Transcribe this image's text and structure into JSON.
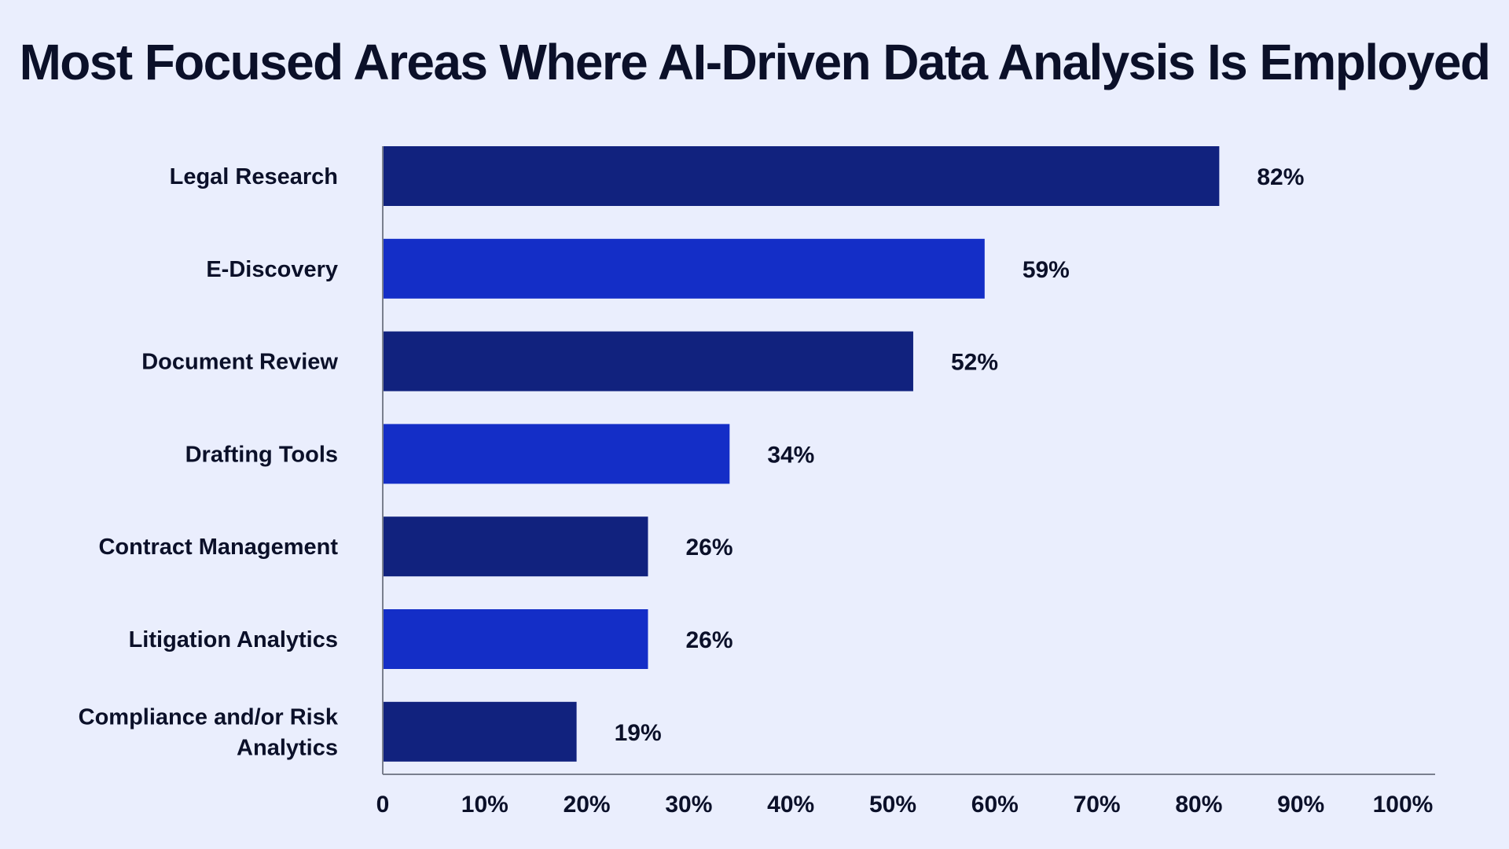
{
  "chart_data": {
    "type": "bar",
    "orientation": "horizontal",
    "title": "Most Focused Areas Where AI-Driven Data Analysis Is Employed",
    "categories": [
      "Legal Research",
      "E-Discovery",
      "Document Review",
      "Drafting Tools",
      "Contract Management",
      "Litigation Analytics",
      "Compliance and/or Risk Analytics"
    ],
    "values": [
      82,
      59,
      52,
      34,
      26,
      26,
      19
    ],
    "value_labels": [
      "82%",
      "59%",
      "52%",
      "34%",
      "26%",
      "26%",
      "19%"
    ],
    "xlabel": "",
    "ylabel": "",
    "xlim": [
      0,
      100
    ],
    "x_ticks": [
      0,
      10,
      20,
      30,
      40,
      50,
      60,
      70,
      80,
      90,
      100
    ],
    "x_tick_labels": [
      "0",
      "10%",
      "20%",
      "30%",
      "40%",
      "50%",
      "60%",
      "70%",
      "80%",
      "90%",
      "100%"
    ],
    "bar_colors": [
      "#11227E",
      "#142EC7"
    ],
    "grid": false,
    "legend": "none"
  }
}
